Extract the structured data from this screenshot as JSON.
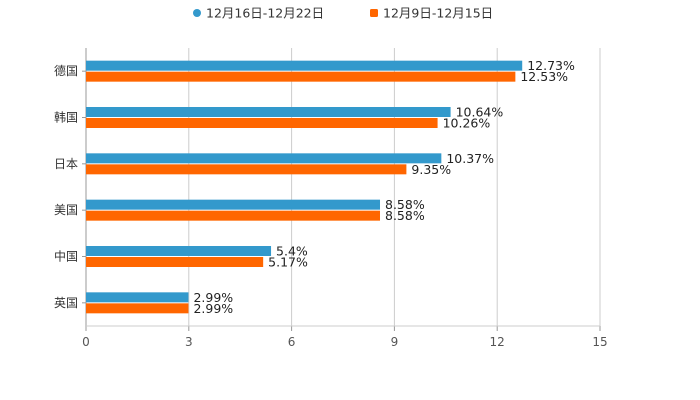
{
  "chart_data": {
    "type": "bar",
    "orientation": "horizontal",
    "title": "",
    "xlabel": "",
    "ylabel": "",
    "xlim": [
      0,
      15
    ],
    "ticks": [
      "0",
      "3",
      "6",
      "9",
      "12",
      "15"
    ],
    "tick_values": [
      0,
      3,
      6,
      9,
      12,
      15
    ],
    "categories": [
      "德国",
      "韩国",
      "日本",
      "美国",
      "中国",
      "英国"
    ],
    "series": [
      {
        "name": "12月16日-12月22日",
        "color": "#3399cc",
        "values": [
          12.73,
          10.64,
          10.37,
          8.58,
          5.4,
          2.99
        ],
        "labels": [
          "12.73%",
          "10.64%",
          "10.37%",
          "8.58%",
          "5.4%",
          "2.99%"
        ]
      },
      {
        "name": "12月9日-12月15日",
        "color": "#ff6600",
        "values": [
          12.53,
          10.26,
          9.35,
          8.58,
          5.17,
          2.99
        ],
        "labels": [
          "12.53%",
          "10.26%",
          "9.35%",
          "8.58%",
          "5.17%",
          "2.99%"
        ]
      }
    ],
    "grid": true,
    "legend_position": "top-center",
    "gridline_color": "#cccccc",
    "axis_color": "#999999"
  }
}
